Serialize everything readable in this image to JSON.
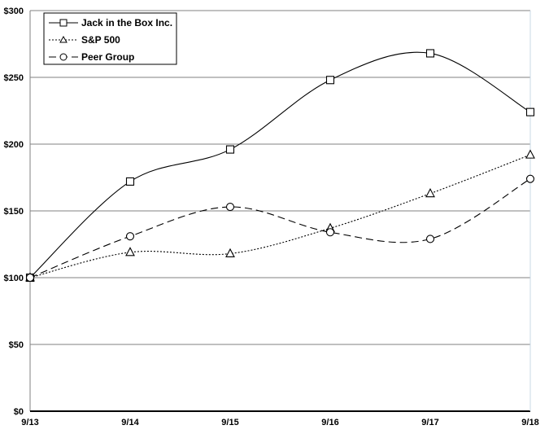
{
  "chart_data": {
    "type": "line",
    "title": "",
    "xlabel": "",
    "ylabel": "",
    "categories": [
      "9/13",
      "9/14",
      "9/15",
      "9/16",
      "9/17",
      "9/18"
    ],
    "ylim": [
      0,
      300
    ],
    "yticks": [
      0,
      50,
      100,
      150,
      200,
      250,
      300
    ],
    "ytick_labels": [
      "$0",
      "$50",
      "$100",
      "$150",
      "$200",
      "$250",
      "$300"
    ],
    "grid": "horizontal",
    "smoothed": true,
    "legend_position": "upper-left inside plot",
    "series": [
      {
        "name": "Jack in the Box Inc.",
        "marker": "square",
        "line": "solid",
        "values": [
          100,
          172,
          196,
          248,
          268,
          224
        ]
      },
      {
        "name": "S&P 500",
        "marker": "triangle",
        "line": "dotted",
        "values": [
          100,
          119,
          118,
          137,
          163,
          192
        ]
      },
      {
        "name": "Peer Group",
        "marker": "circle",
        "line": "dashed",
        "values": [
          100,
          131,
          153,
          134,
          129,
          174
        ]
      }
    ]
  },
  "colors": {
    "line": "#000000",
    "gridline": "#808080",
    "right_border": "#c8d8e4",
    "background": "#ffffff"
  }
}
